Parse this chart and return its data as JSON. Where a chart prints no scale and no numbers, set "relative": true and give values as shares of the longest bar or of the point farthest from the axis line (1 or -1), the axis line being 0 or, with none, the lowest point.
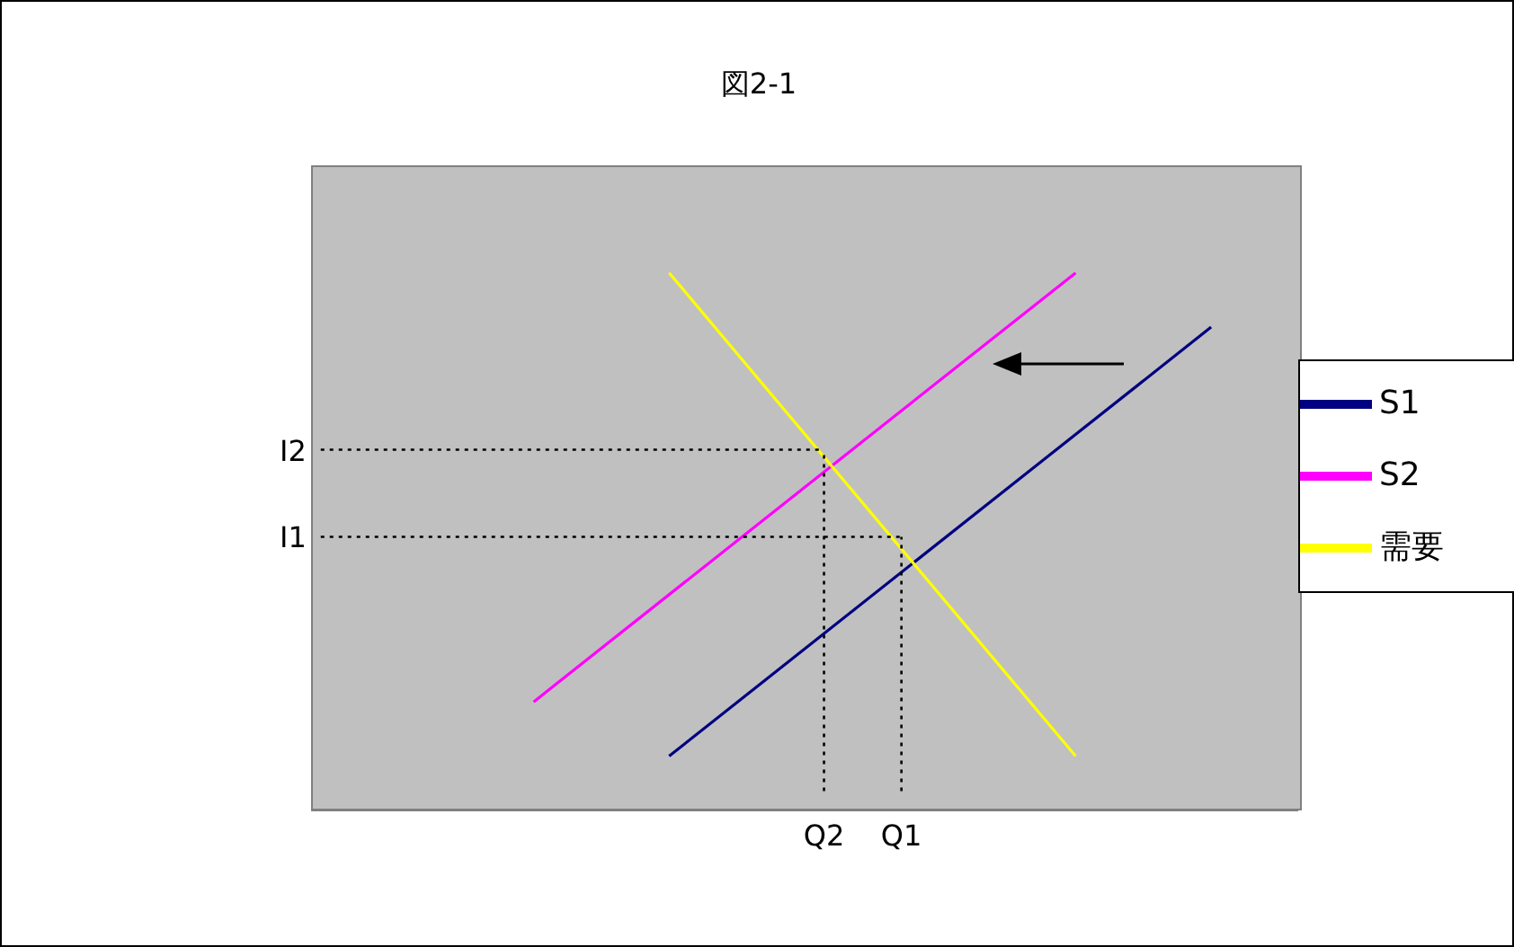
{
  "chart_data": {
    "type": "line",
    "title": "図2-1",
    "relative": true,
    "legend": "right",
    "marker": "none",
    "line_style": "solid",
    "categories": [
      null,
      null,
      null,
      null,
      null,
      null,
      null,
      null,
      null,
      null,
      null,
      null,
      null,
      null,
      null,
      null,
      null,
      null,
      null,
      null,
      null,
      null,
      null,
      null,
      null,
      null,
      "Q2",
      null,
      null,
      null,
      "Q1",
      null,
      null,
      null,
      null,
      null,
      null,
      null,
      null,
      null,
      null,
      null,
      null,
      null,
      null,
      null,
      null,
      null,
      null,
      null,
      null
    ],
    "series": [
      {
        "name": "S1",
        "color": "#000080",
        "values": [
          null,
          null,
          null,
          null,
          null,
          null,
          null,
          null,
          null,
          null,
          null,
          null,
          null,
          null,
          null,
          null,
          null,
          null,
          0.101,
          null,
          null,
          null,
          null,
          null,
          null,
          null,
          null,
          null,
          null,
          null,
          null,
          null,
          null,
          null,
          null,
          null,
          null,
          null,
          null,
          null,
          null,
          null,
          null,
          null,
          null,
          null,
          0.899,
          null,
          null,
          null,
          null
        ]
      },
      {
        "name": "S2",
        "color": "#ff00ff",
        "values": [
          null,
          null,
          null,
          null,
          null,
          null,
          null,
          null,
          null,
          null,
          null,
          0.202,
          null,
          null,
          null,
          null,
          null,
          null,
          null,
          null,
          null,
          null,
          null,
          null,
          null,
          null,
          null,
          null,
          null,
          null,
          null,
          null,
          null,
          null,
          null,
          null,
          null,
          null,
          null,
          1,
          null,
          null,
          null,
          null,
          null,
          null,
          null,
          null,
          null,
          null,
          null
        ]
      },
      {
        "name": "需要",
        "color": "#ffff00",
        "values": [
          null,
          null,
          null,
          null,
          null,
          null,
          null,
          null,
          null,
          null,
          null,
          null,
          null,
          null,
          null,
          null,
          null,
          null,
          1,
          null,
          null,
          null,
          null,
          null,
          null,
          null,
          null,
          null,
          null,
          null,
          null,
          null,
          null,
          null,
          null,
          null,
          null,
          null,
          null,
          0.101,
          null,
          null,
          null,
          null,
          null,
          null,
          null,
          null,
          null,
          null,
          null
        ]
      },
      {
        "name": "I2",
        "color": "#000000",
        "line_style": "dotted",
        "values": [
          0.671,
          null,
          null,
          null,
          null,
          null,
          null,
          null,
          null,
          null,
          null,
          null,
          null,
          null,
          null,
          null,
          null,
          null,
          null,
          null,
          null,
          null,
          null,
          null,
          null,
          null,
          0.671,
          null,
          null,
          null,
          null,
          null,
          null,
          null,
          null,
          null,
          null,
          null,
          null,
          null,
          null,
          null,
          null,
          null,
          null,
          null,
          null,
          null,
          null,
          null,
          null
        ]
      },
      {
        "name": "I1",
        "color": "#000000",
        "line_style": "dotted",
        "values": [
          0.509,
          null,
          null,
          null,
          null,
          null,
          null,
          null,
          null,
          null,
          null,
          null,
          null,
          null,
          null,
          null,
          null,
          null,
          null,
          null,
          null,
          null,
          null,
          null,
          null,
          null,
          null,
          null,
          null,
          null,
          0.509,
          null,
          null,
          null,
          null,
          null,
          null,
          null,
          null,
          null,
          null,
          null,
          null,
          null,
          null,
          null,
          null,
          null,
          null,
          null,
          null
        ]
      },
      {
        "color": "#000000",
        "line_style": "dotted",
        "x": [
          "Q2",
          "Q2"
        ],
        "values": [
          0.036,
          0.671
        ]
      },
      {
        "color": "#000000",
        "line_style": "dotted",
        "x": [
          "Q1",
          "Q1"
        ],
        "values": [
          0.036,
          0.509
        ]
      }
    ]
  }
}
